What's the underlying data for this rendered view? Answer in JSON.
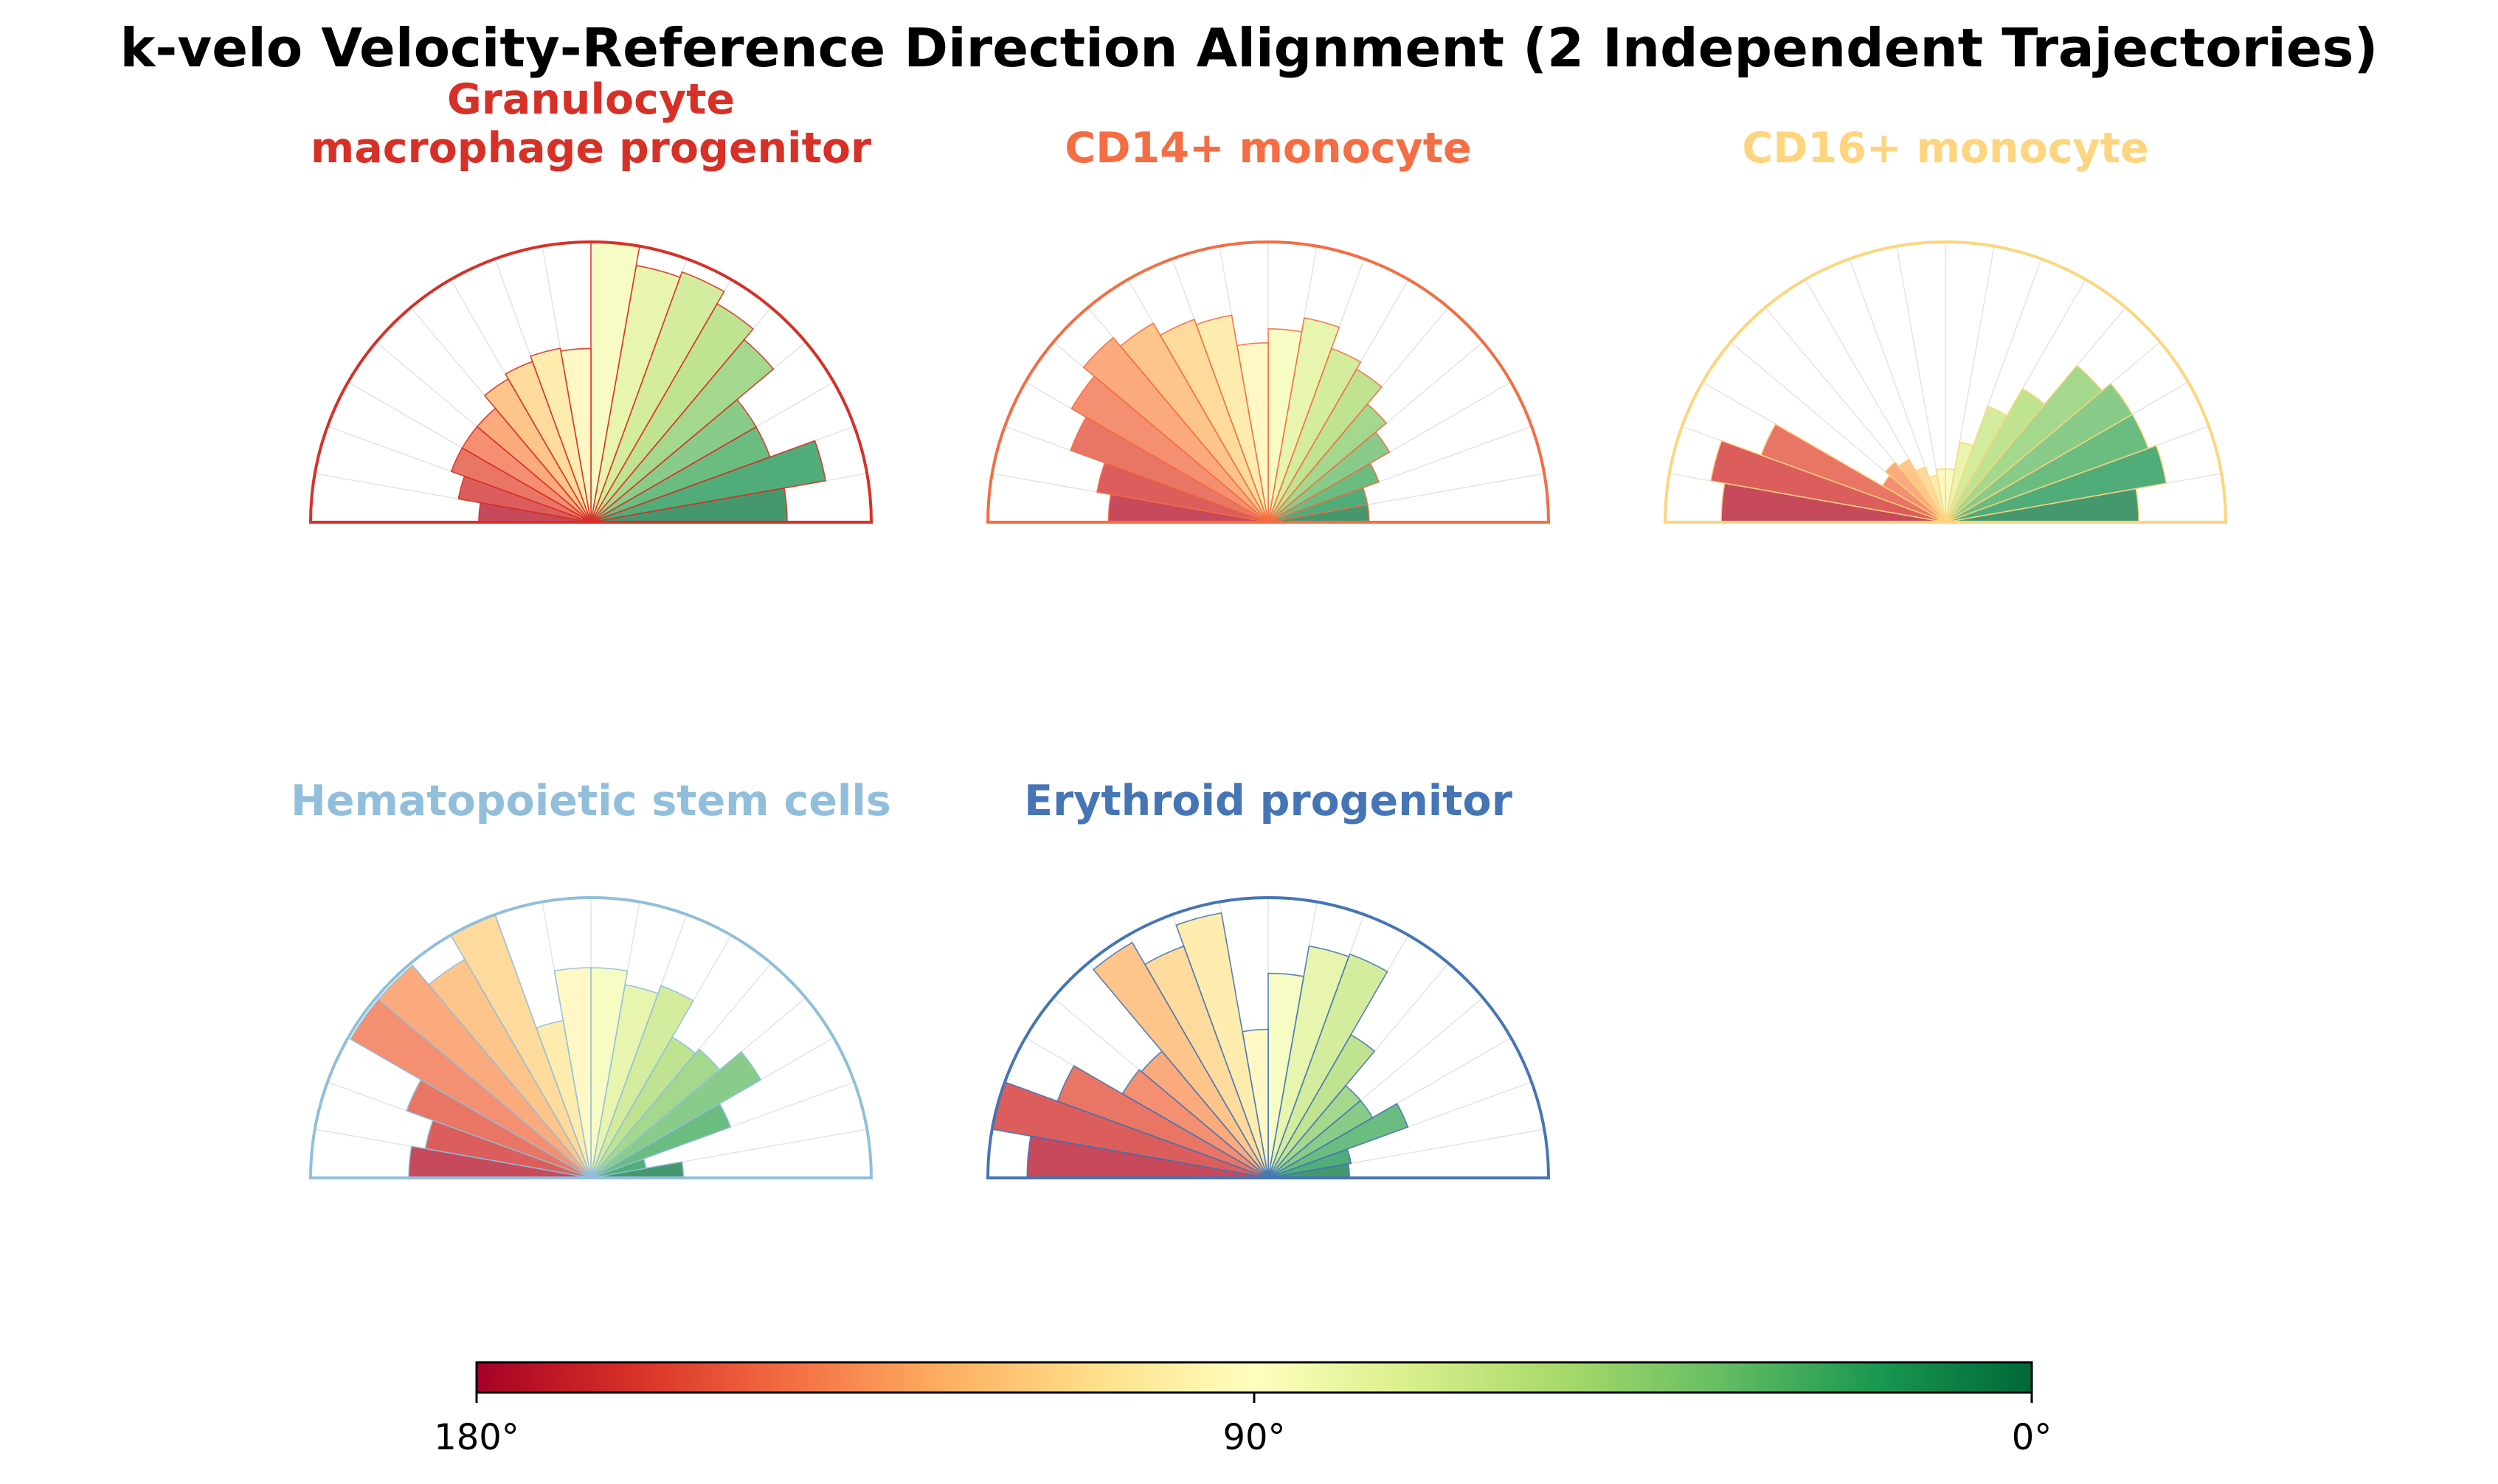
{
  "chart_data": {
    "title": "k-velo Velocity-Reference Direction Alignment (2 Independent Trajectories)",
    "type": "polar-histogram",
    "angle_range_deg": [
      0,
      180
    ],
    "n_bins": 18,
    "bin_width_deg": 10,
    "bin_order": "bin 0 = 0–10° (right, green) … bin 17 = 170–180° (left, red)",
    "max_radius": 1.0,
    "panels": [
      {
        "name": "Granulocyte macrophage progenitor",
        "title_lines": [
          "Granulocyte",
          "macrophage progenitor"
        ],
        "color": "#d73027",
        "values": [
          0.7,
          0.85,
          0.68,
          0.68,
          0.85,
          0.9,
          0.95,
          0.93,
          1.0,
          0.62,
          0.63,
          0.61,
          0.59,
          0.53,
          0.53,
          0.53,
          0.48,
          0.4
        ]
      },
      {
        "name": "CD14+ monocyte",
        "title_lines": [
          "CD14+ monocyte"
        ],
        "color": "#f46d43",
        "values": [
          0.36,
          0.36,
          0.42,
          0.5,
          0.55,
          0.63,
          0.66,
          0.74,
          0.69,
          0.64,
          0.75,
          0.77,
          0.82,
          0.86,
          0.81,
          0.75,
          0.62,
          0.57
        ]
      },
      {
        "name": "CD16+ monocyte",
        "title_lines": [
          "CD16+ monocyte"
        ],
        "color": "#fdd57e",
        "values": [
          0.69,
          0.8,
          0.77,
          0.77,
          0.73,
          0.55,
          0.44,
          0.29,
          0.19,
          0.19,
          0.17,
          0.21,
          0.26,
          0.28,
          0.26,
          0.7,
          0.85,
          0.8
        ]
      },
      {
        "name": "Hematopoietic stem cells",
        "title_lines": [
          "Hematopoietic stem cells"
        ],
        "color": "#91bfdb",
        "values": [
          0.33,
          0.2,
          0.53,
          0.7,
          0.6,
          0.58,
          0.73,
          0.7,
          0.75,
          0.75,
          0.57,
          1.0,
          0.9,
          0.99,
          0.99,
          0.7,
          0.6,
          0.65
        ]
      },
      {
        "name": "Erythroid progenitor",
        "title_lines": [
          "Erythroid progenitor"
        ],
        "color": "#4575b4",
        "values": [
          0.29,
          0.3,
          0.53,
          0.43,
          0.43,
          0.59,
          0.85,
          0.84,
          0.73,
          0.53,
          0.96,
          0.88,
          0.97,
          0.59,
          0.6,
          0.8,
          1.0,
          0.86
        ]
      }
    ],
    "colorbar": {
      "colormap": "RdYlGn",
      "range_deg": [
        180,
        0
      ],
      "tick_labels": [
        "180°",
        "90°",
        "0°"
      ]
    }
  }
}
